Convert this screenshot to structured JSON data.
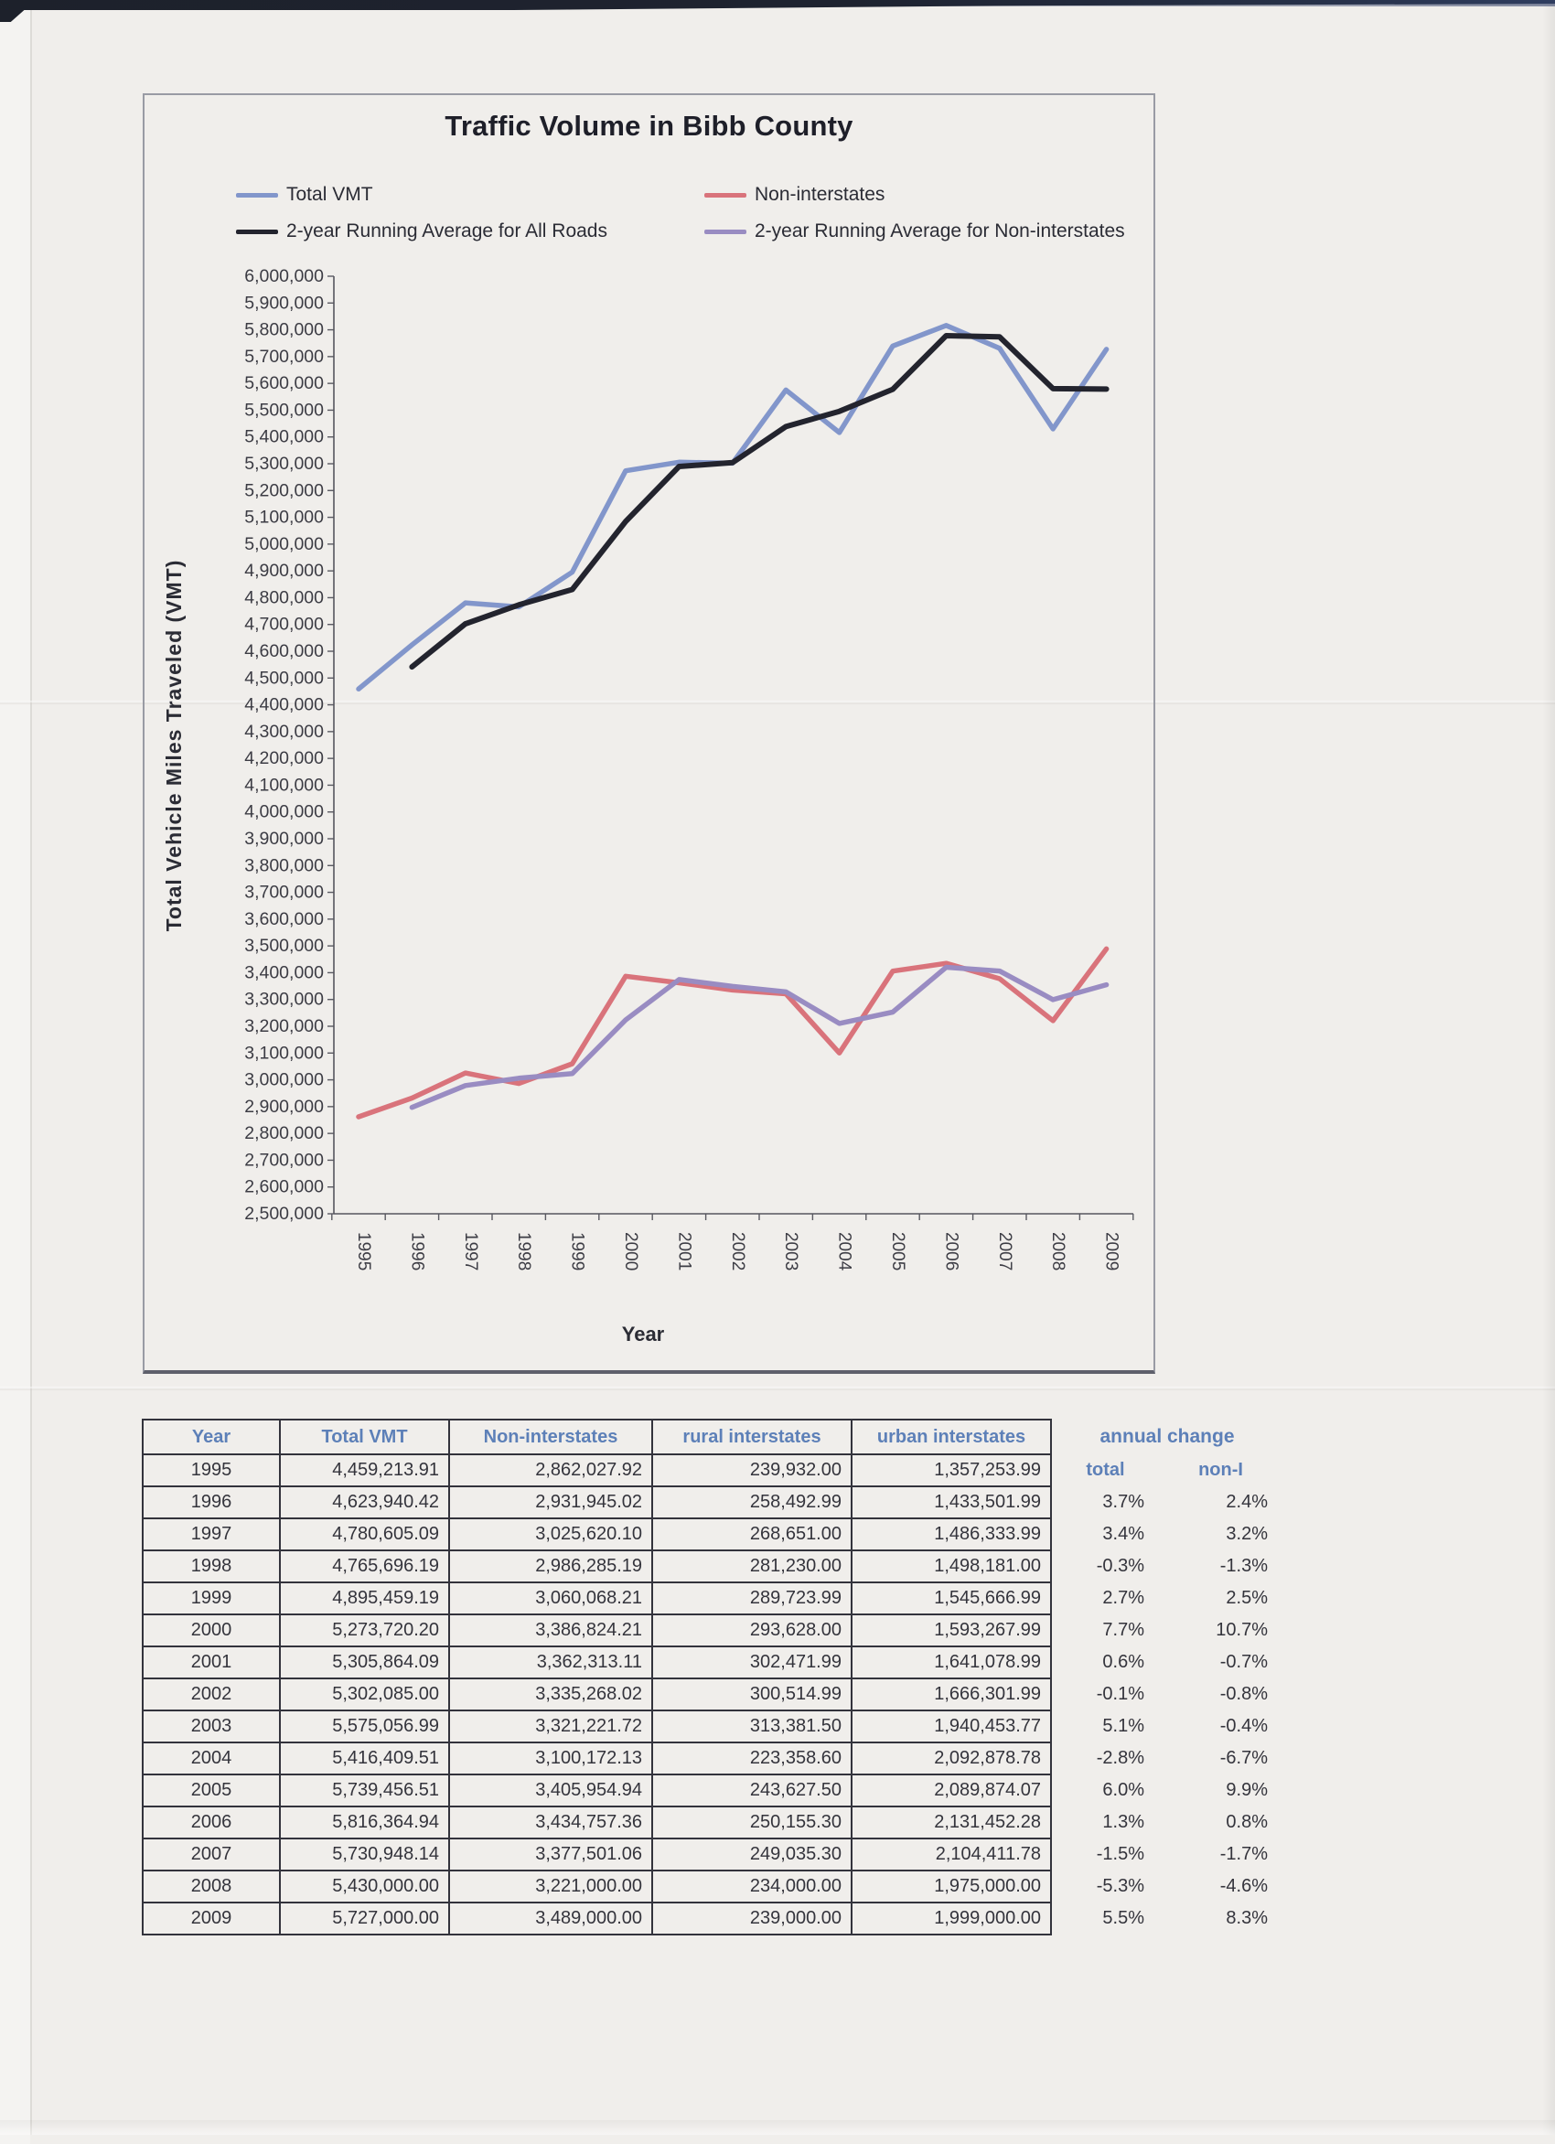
{
  "accent_colors": {
    "header_blue": "#5d80b8",
    "paper": "#f0eeeb",
    "ink": "#34343c"
  },
  "chart_data": {
    "type": "line",
    "title": "Traffic Volume in Bibb County",
    "xlabel": "Year",
    "ylabel": "Total Vehicle Miles Traveled  (VMT)",
    "x": [
      1995,
      1996,
      1997,
      1998,
      1999,
      2000,
      2001,
      2002,
      2003,
      2004,
      2005,
      2006,
      2007,
      2008,
      2009
    ],
    "ylim": [
      2500000,
      6000000
    ],
    "ytick_step": 100000,
    "grid": false,
    "legend_position": "top",
    "series": [
      {
        "name": "Total VMT",
        "color": "#8296cb",
        "width": 5.5,
        "values": [
          4459213.91,
          4623940.42,
          4780605.09,
          4765696.19,
          4895459.19,
          5273720.2,
          5305864.09,
          5302085.0,
          5575056.99,
          5416409.51,
          5739456.51,
          5816364.94,
          5730948.14,
          5430000.0,
          5727000.0
        ]
      },
      {
        "name": "Non-interstates",
        "color": "#d9737b",
        "width": 5.5,
        "values": [
          2862027.92,
          2931945.02,
          3025620.1,
          2986285.19,
          3060068.21,
          3386824.21,
          3362313.11,
          3335268.02,
          3321221.72,
          3100172.13,
          3405954.94,
          3434757.36,
          3377501.06,
          3221000.0,
          3489000.0
        ]
      },
      {
        "name": "2-year Running Average for All Roads",
        "color": "#23242e",
        "width": 6,
        "values": [
          null,
          4541577.17,
          4702272.76,
          4773150.64,
          4830577.69,
          5084589.7,
          5289792.15,
          5303974.55,
          5438571.0,
          5495733.25,
          5577933.01,
          5777910.73,
          5773656.54,
          5580474.07,
          5578500.0
        ]
      },
      {
        "name": "2-year Running Average for Non-interstates",
        "color": "#998cc2",
        "width": 5.5,
        "values": [
          null,
          2896986.47,
          2978782.56,
          3005952.65,
          3023176.7,
          3223446.21,
          3374568.66,
          3348790.57,
          3328244.87,
          3210696.93,
          3253063.54,
          3420356.15,
          3406129.21,
          3299250.53,
          3355000.0
        ]
      }
    ]
  },
  "table": {
    "headers": [
      "Year",
      "Total VMT",
      "Non-interstates",
      "rural interstates",
      "urban interstates"
    ],
    "annual_change": {
      "header": "annual change",
      "subheaders": [
        "total",
        "non-I"
      ]
    },
    "rows": [
      [
        "1995",
        "4,459,213.91",
        "2,862,027.92",
        "239,932.00",
        "1,357,253.99",
        "",
        ""
      ],
      [
        "1996",
        "4,623,940.42",
        "2,931,945.02",
        "258,492.99",
        "1,433,501.99",
        "3.7%",
        "2.4%"
      ],
      [
        "1997",
        "4,780,605.09",
        "3,025,620.10",
        "268,651.00",
        "1,486,333.99",
        "3.4%",
        "3.2%"
      ],
      [
        "1998",
        "4,765,696.19",
        "2,986,285.19",
        "281,230.00",
        "1,498,181.00",
        "-0.3%",
        "-1.3%"
      ],
      [
        "1999",
        "4,895,459.19",
        "3,060,068.21",
        "289,723.99",
        "1,545,666.99",
        "2.7%",
        "2.5%"
      ],
      [
        "2000",
        "5,273,720.20",
        "3,386,824.21",
        "293,628.00",
        "1,593,267.99",
        "7.7%",
        "10.7%"
      ],
      [
        "2001",
        "5,305,864.09",
        "3,362,313.11",
        "302,471.99",
        "1,641,078.99",
        "0.6%",
        "-0.7%"
      ],
      [
        "2002",
        "5,302,085.00",
        "3,335,268.02",
        "300,514.99",
        "1,666,301.99",
        "-0.1%",
        "-0.8%"
      ],
      [
        "2003",
        "5,575,056.99",
        "3,321,221.72",
        "313,381.50",
        "1,940,453.77",
        "5.1%",
        "-0.4%"
      ],
      [
        "2004",
        "5,416,409.51",
        "3,100,172.13",
        "223,358.60",
        "2,092,878.78",
        "-2.8%",
        "-6.7%"
      ],
      [
        "2005",
        "5,739,456.51",
        "3,405,954.94",
        "243,627.50",
        "2,089,874.07",
        "6.0%",
        "9.9%"
      ],
      [
        "2006",
        "5,816,364.94",
        "3,434,757.36",
        "250,155.30",
        "2,131,452.28",
        "1.3%",
        "0.8%"
      ],
      [
        "2007",
        "5,730,948.14",
        "3,377,501.06",
        "249,035.30",
        "2,104,411.78",
        "-1.5%",
        "-1.7%"
      ],
      [
        "2008",
        "5,430,000.00",
        "3,221,000.00",
        "234,000.00",
        "1,975,000.00",
        "-5.3%",
        "-4.6%"
      ],
      [
        "2009",
        "5,727,000.00",
        "3,489,000.00",
        "239,000.00",
        "1,999,000.00",
        "5.5%",
        "8.3%"
      ]
    ]
  }
}
